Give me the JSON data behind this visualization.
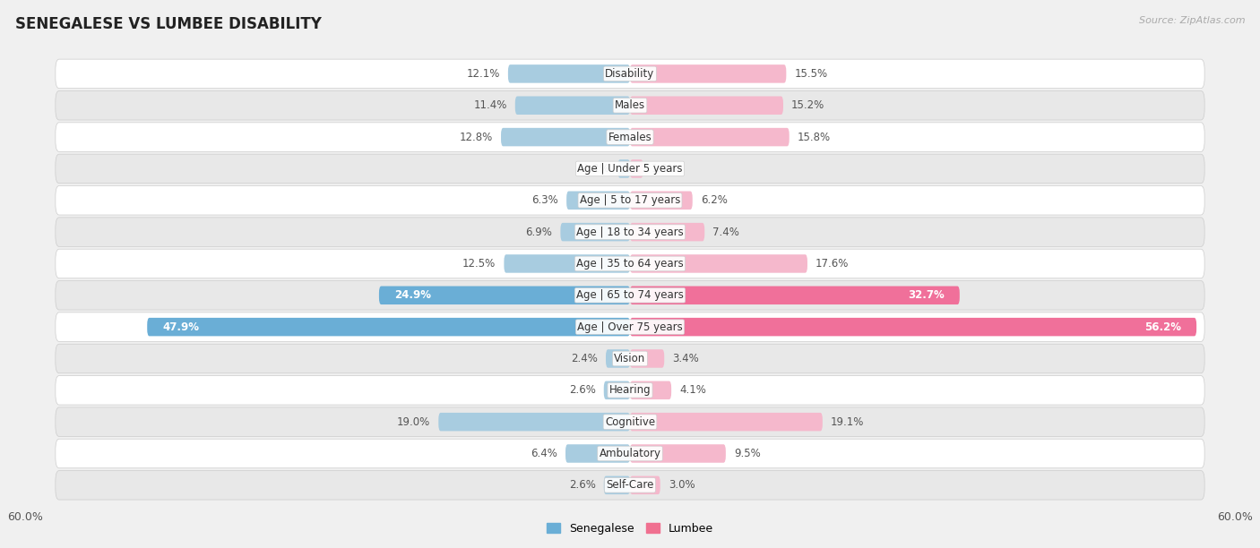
{
  "title": "SENEGALESE VS LUMBEE DISABILITY",
  "source": "Source: ZipAtlas.com",
  "categories": [
    "Disability",
    "Males",
    "Females",
    "Age | Under 5 years",
    "Age | 5 to 17 years",
    "Age | 18 to 34 years",
    "Age | 35 to 64 years",
    "Age | 65 to 74 years",
    "Age | Over 75 years",
    "Vision",
    "Hearing",
    "Cognitive",
    "Ambulatory",
    "Self-Care"
  ],
  "senegalese": [
    12.1,
    11.4,
    12.8,
    1.2,
    6.3,
    6.9,
    12.5,
    24.9,
    47.9,
    2.4,
    2.6,
    19.0,
    6.4,
    2.6
  ],
  "lumbee": [
    15.5,
    15.2,
    15.8,
    1.3,
    6.2,
    7.4,
    17.6,
    32.7,
    56.2,
    3.4,
    4.1,
    19.1,
    9.5,
    3.0
  ],
  "x_max": 60.0,
  "bar_color_senegalese": "#a8cce0",
  "bar_color_lumbee": "#f5b8cc",
  "bar_color_senegalese_large": "#6aaed6",
  "bar_color_lumbee_large": "#f0709a",
  "legend_senegalese_color": "#6aaed6",
  "legend_lumbee_color": "#f07090",
  "background_color": "#f0f0f0",
  "row_bg_color": "#e8e8e8",
  "row_white_color": "#ffffff",
  "label_fontsize": 8.5,
  "title_fontsize": 12,
  "value_label_color": "#555555",
  "center_label_color": "#333333",
  "large_bar_threshold": 20.0
}
